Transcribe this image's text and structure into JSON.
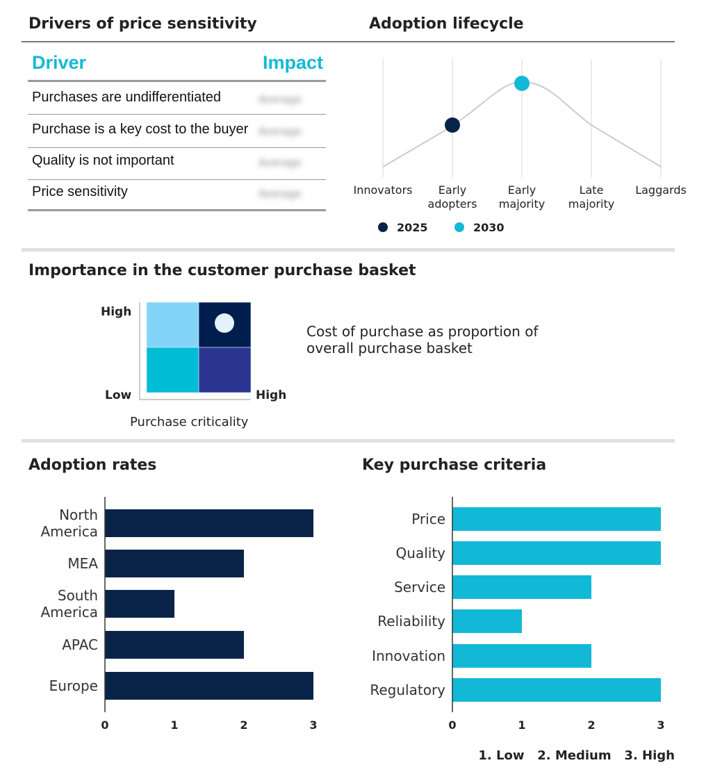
{
  "drivers": {
    "title": "Drivers of price sensitivity",
    "headers": {
      "driver": "Driver",
      "impact": "Impact"
    },
    "rows": [
      {
        "driver": "Purchases are undifferentiated",
        "impact": "Average"
      },
      {
        "driver": "Purchase is a key cost to the buyer",
        "impact": "Average"
      },
      {
        "driver": "Quality is not important",
        "impact": "Average"
      },
      {
        "driver": "Price sensitivity",
        "impact": "Average"
      }
    ]
  },
  "importance": {
    "title": "Importance in the customer purchase basket",
    "y_high": "High",
    "y_low": "Low",
    "x_high": "High",
    "xlabel": "Purchase criticality",
    "description_line1": "Cost of purchase as proportion of",
    "description_line2": "overall purchase basket",
    "selected_cell": "high-high",
    "colors": {
      "low_high": "#84d4fa",
      "high_high": "#001e4d",
      "low_low": "#00bcd4",
      "high_low": "#2b3491",
      "marker": "#e3f2fd"
    }
  },
  "chart_data": [
    {
      "type": "line",
      "title": "Adoption lifecycle",
      "categories": [
        "Innovators",
        "Early adopters",
        "Early majority",
        "Late majority",
        "Laggards"
      ],
      "category_lines": [
        [
          "Innovators"
        ],
        [
          "Early",
          "adopters"
        ],
        [
          "Early",
          "majority"
        ],
        [
          "Late",
          "majority"
        ],
        [
          "Laggards"
        ]
      ],
      "curve": "bell",
      "series": [
        {
          "name": "2025",
          "category": "Early adopters",
          "color": "#0a2349"
        },
        {
          "name": "2030",
          "category": "Early majority",
          "color": "#12b9d6"
        }
      ],
      "legend_placement": "bottom"
    },
    {
      "type": "bar",
      "orientation": "horizontal",
      "title": "Adoption rates",
      "categories": [
        "North America",
        "MEA",
        "South America",
        "APAC",
        "Europe"
      ],
      "category_lines": [
        [
          "North",
          "America"
        ],
        [
          "MEA"
        ],
        [
          "South",
          "America"
        ],
        [
          "APAC"
        ],
        [
          "Europe"
        ]
      ],
      "values": [
        3,
        2,
        1,
        2,
        3
      ],
      "xlim": [
        0,
        3
      ],
      "ticks": [
        "0",
        "1",
        "2",
        "3"
      ],
      "color": "#0a2349"
    },
    {
      "type": "bar",
      "orientation": "horizontal",
      "title": "Key purchase criteria",
      "categories": [
        "Price",
        "Quality",
        "Service",
        "Reliability",
        "Innovation",
        "Regulatory"
      ],
      "values": [
        3,
        3,
        2,
        1,
        2,
        3
      ],
      "xlim": [
        0,
        3
      ],
      "ticks": [
        "0",
        "1",
        "2",
        "3"
      ],
      "color": "#12b9d6"
    }
  ],
  "scale_legend": "1. Low   2. Medium   3. High"
}
